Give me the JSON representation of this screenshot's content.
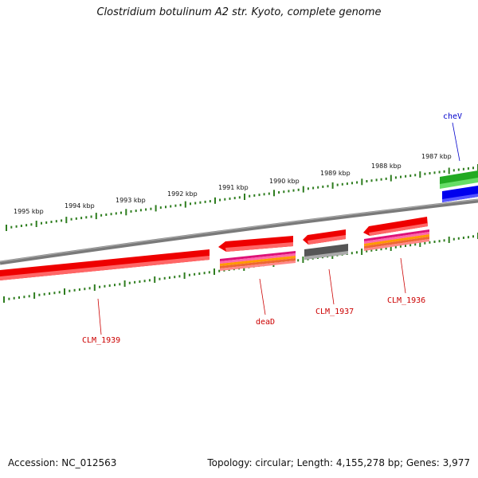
{
  "title": "Clostridium botulinum A2 str. Kyoto, complete genome",
  "accession": "Accession: NC_012563",
  "summary": "Topology: circular; Length: 4,155,278 bp; Genes: 3,977",
  "colors": {
    "backbone": "#808080",
    "tick": "#2e7d1f",
    "label_red": "#cc0000",
    "label_blue": "#0000cc",
    "gene_red": "#ff0000",
    "gene_green": "#33bb33",
    "gene_blue": "#0000ee",
    "gene_gray": "#666666"
  },
  "tick_labels": [
    "1995 kbp",
    "1994 kbp",
    "1993 kbp",
    "1992 kbp",
    "1991 kbp",
    "1990 kbp",
    "1989 kbp",
    "1988 kbp",
    "1987 kbp"
  ],
  "gene_labels": [
    {
      "name": "CLM_1939",
      "color": "red"
    },
    {
      "name": "deaD",
      "color": "red"
    },
    {
      "name": "CLM_1937",
      "color": "red"
    },
    {
      "name": "CLM_1936",
      "color": "red"
    },
    {
      "name": "cheV",
      "color": "blue"
    }
  ]
}
